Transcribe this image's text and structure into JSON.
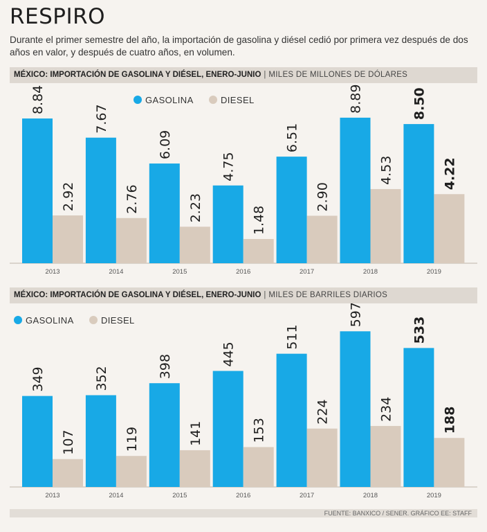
{
  "title": "RESPIRO",
  "subtitle": "Durante el primer semestre del año, la importación de gasolina y diésel cedió por primera vez después de dos años en valor, y después de cuatro años, en volumen.",
  "colors": {
    "gasolina": "#18a9e6",
    "diesel": "#d9cbbd",
    "background": "#f6f3ef",
    "header": "#ded8d1"
  },
  "chart_data": [
    {
      "type": "bar",
      "header_bold": "MÉXICO: IMPORTACIÓN DE GASOLINA Y DIÉSEL, ENERO-JUNIO",
      "header_sep": "|",
      "unit": "MILES DE MILLONES DE DÓLARES",
      "categories": [
        "2013",
        "2014",
        "2015",
        "2016",
        "2017",
        "2018",
        "2019"
      ],
      "series": [
        {
          "name": "GASOLINA",
          "values": [
            8.84,
            7.67,
            6.09,
            4.75,
            6.51,
            8.89,
            8.5
          ],
          "labels": [
            "8.84",
            "7.67",
            "6.09",
            "4.75",
            "6.51",
            "8.89",
            "8.50"
          ]
        },
        {
          "name": "DIESEL",
          "values": [
            2.92,
            2.76,
            2.23,
            1.48,
            2.9,
            4.53,
            4.22
          ],
          "labels": [
            "2.92",
            "2.76",
            "2.23",
            "1.48",
            "2.90",
            "4.53",
            "4.22"
          ]
        }
      ],
      "highlight_category": "2019",
      "ylim": [
        0,
        11
      ]
    },
    {
      "type": "bar",
      "header_bold": "MÉXICO: IMPORTACIÓN DE GASOLINA Y DIÉSEL, ENERO-JUNIO",
      "header_sep": "|",
      "unit": "MILES DE BARRILES DIARIOS",
      "categories": [
        "2013",
        "2014",
        "2015",
        "2016",
        "2017",
        "2018",
        "2019"
      ],
      "series": [
        {
          "name": "GASOLINA",
          "values": [
            349,
            352,
            398,
            445,
            511,
            597,
            533
          ],
          "labels": [
            "349",
            "352",
            "398",
            "445",
            "511",
            "597",
            "533"
          ]
        },
        {
          "name": "DIESEL",
          "values": [
            107,
            119,
            141,
            153,
            224,
            234,
            188
          ],
          "labels": [
            "107",
            "119",
            "141",
            "153",
            "224",
            "234",
            "188"
          ]
        }
      ],
      "highlight_category": "2019",
      "ylim": [
        0,
        704
      ]
    }
  ],
  "footer": "FUENTE: BANXICO / SENER. GRÁFICO EE: STAFF"
}
